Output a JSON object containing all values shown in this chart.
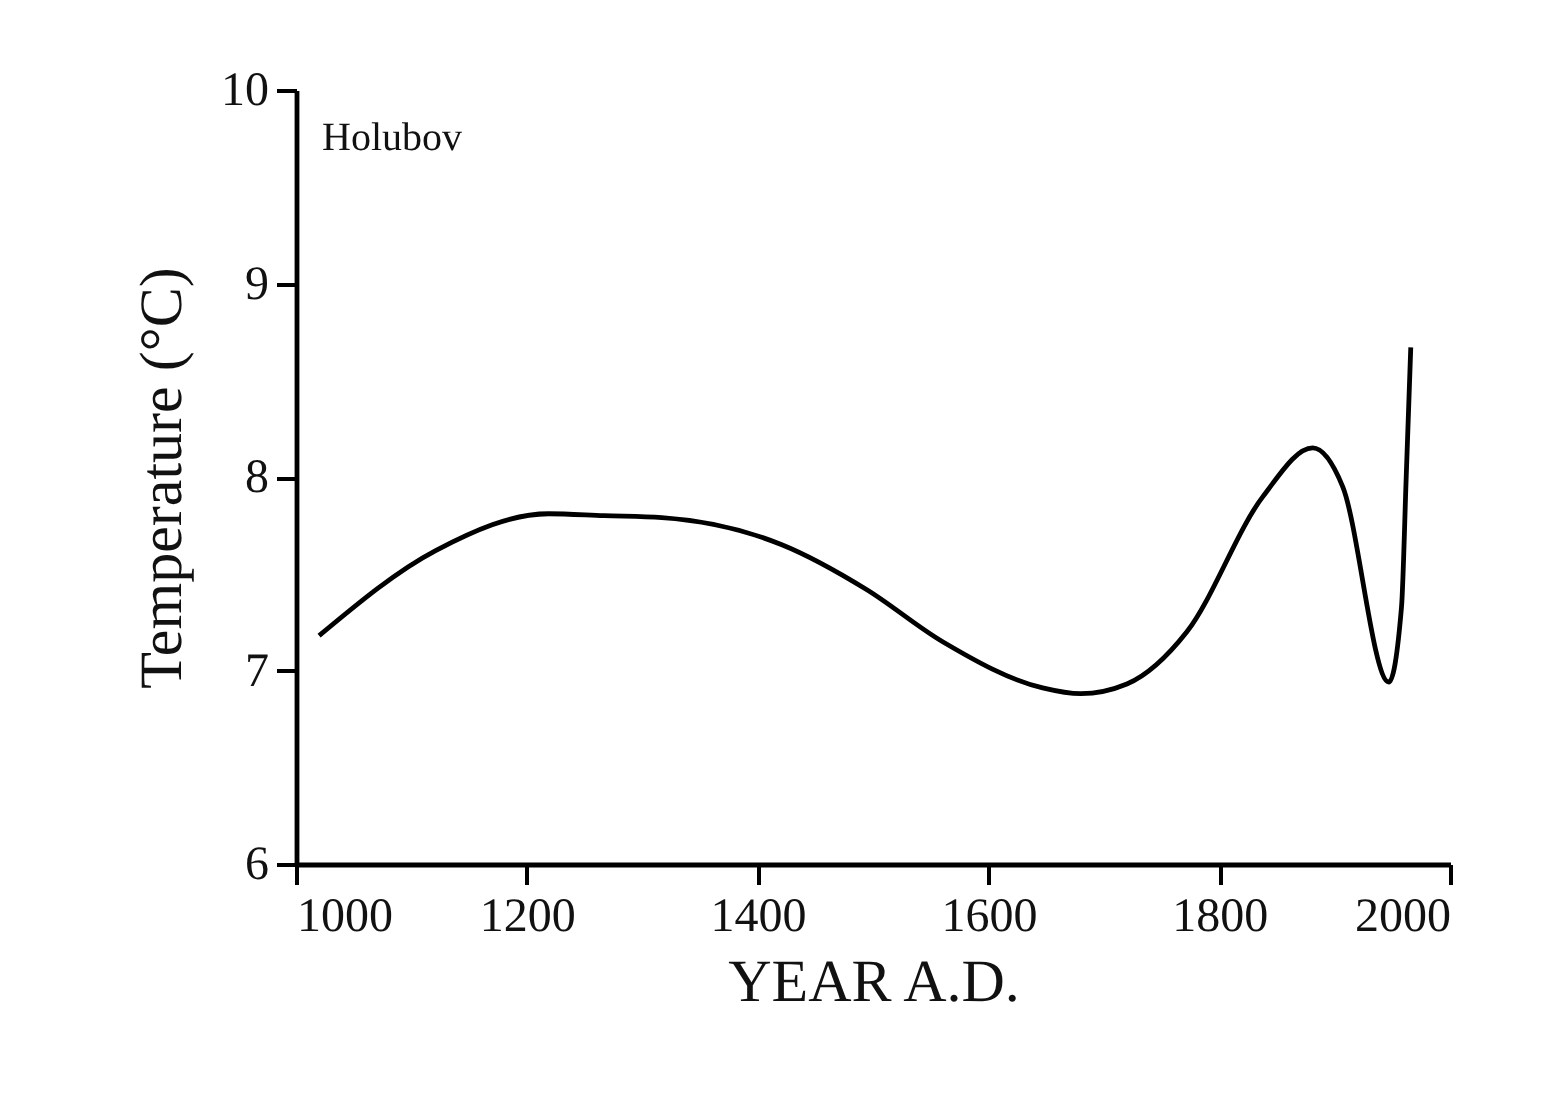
{
  "chart_data": {
    "type": "line",
    "title": "Holubov",
    "xlabel": "YEAR A.D.",
    "ylabel": "Temperature (°C)",
    "x": [
      1020,
      1121,
      1219,
      1267,
      1317,
      1421,
      1494,
      1560,
      1647,
      1680,
      1720,
      1772,
      1838,
      1881,
      1907,
      1947,
      1958,
      1962,
      1966
    ],
    "series": [
      {
        "color": "#000000",
        "values": [
          7.18,
          7.62,
          7.81,
          7.8,
          7.79,
          7.65,
          7.42,
          7.15,
          6.91,
          6.88,
          6.93,
          7.2,
          7.9,
          8.15,
          7.95,
          6.94,
          7.33,
          7.99,
          8.67
        ]
      }
    ],
    "xlim": [
      1000,
      2000
    ],
    "xticks": [
      1000,
      1200,
      1400,
      1600,
      1800,
      2000
    ],
    "ylim": [
      6,
      10
    ],
    "yticks": [
      6,
      7,
      8,
      9,
      10
    ],
    "grid": false,
    "legend": false,
    "marker": "none",
    "line_style": "solid"
  }
}
